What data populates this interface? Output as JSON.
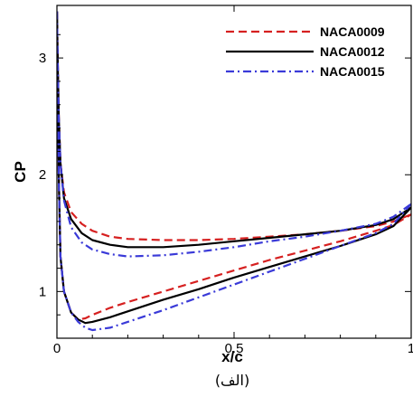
{
  "chart_data": {
    "type": "line",
    "title": "",
    "xlabel": "x/c",
    "ylabel": "CP",
    "caption": "(الف)",
    "xlim": [
      0,
      1
    ],
    "ylim": [
      0.6,
      3.45
    ],
    "x_ticks": [
      {
        "value": 0,
        "label": "0"
      },
      {
        "value": 0.5,
        "label": "0.5"
      },
      {
        "value": 1,
        "label": "1"
      }
    ],
    "y_ticks": [
      {
        "value": 1,
        "label": "1"
      },
      {
        "value": 2,
        "label": "2"
      },
      {
        "value": 3,
        "label": "3"
      }
    ],
    "legend_position": "top-right",
    "grid": false,
    "series": [
      {
        "name": "NACA0009",
        "color": "#d62020",
        "dash": "dashed",
        "upper": [
          [
            0.0,
            3.4
          ],
          [
            0.002,
            3.0
          ],
          [
            0.005,
            2.5
          ],
          [
            0.01,
            2.1
          ],
          [
            0.02,
            1.85
          ],
          [
            0.04,
            1.68
          ],
          [
            0.07,
            1.58
          ],
          [
            0.1,
            1.52
          ],
          [
            0.15,
            1.47
          ],
          [
            0.2,
            1.45
          ],
          [
            0.3,
            1.44
          ],
          [
            0.4,
            1.44
          ],
          [
            0.5,
            1.45
          ],
          [
            0.6,
            1.47
          ],
          [
            0.7,
            1.49
          ],
          [
            0.8,
            1.52
          ],
          [
            0.9,
            1.56
          ],
          [
            0.95,
            1.6
          ],
          [
            1.0,
            1.66
          ]
        ],
        "lower": [
          [
            0.0,
            3.4
          ],
          [
            0.005,
            2.0
          ],
          [
            0.01,
            1.3
          ],
          [
            0.02,
            1.0
          ],
          [
            0.04,
            0.82
          ],
          [
            0.06,
            0.76
          ],
          [
            0.08,
            0.77
          ],
          [
            0.1,
            0.8
          ],
          [
            0.15,
            0.86
          ],
          [
            0.2,
            0.91
          ],
          [
            0.3,
            1.0
          ],
          [
            0.4,
            1.09
          ],
          [
            0.5,
            1.18
          ],
          [
            0.6,
            1.27
          ],
          [
            0.7,
            1.35
          ],
          [
            0.8,
            1.43
          ],
          [
            0.9,
            1.52
          ],
          [
            0.95,
            1.57
          ],
          [
            1.0,
            1.66
          ]
        ]
      },
      {
        "name": "NACA0012",
        "color": "#000000",
        "dash": "solid",
        "upper": [
          [
            0.0,
            3.4
          ],
          [
            0.002,
            3.0
          ],
          [
            0.005,
            2.5
          ],
          [
            0.01,
            2.1
          ],
          [
            0.02,
            1.8
          ],
          [
            0.04,
            1.62
          ],
          [
            0.07,
            1.5
          ],
          [
            0.1,
            1.44
          ],
          [
            0.15,
            1.4
          ],
          [
            0.2,
            1.38
          ],
          [
            0.3,
            1.38
          ],
          [
            0.4,
            1.4
          ],
          [
            0.5,
            1.43
          ],
          [
            0.6,
            1.46
          ],
          [
            0.7,
            1.49
          ],
          [
            0.8,
            1.52
          ],
          [
            0.9,
            1.57
          ],
          [
            0.95,
            1.62
          ],
          [
            1.0,
            1.72
          ]
        ],
        "lower": [
          [
            0.0,
            3.4
          ],
          [
            0.005,
            2.0
          ],
          [
            0.01,
            1.3
          ],
          [
            0.02,
            1.0
          ],
          [
            0.04,
            0.82
          ],
          [
            0.06,
            0.76
          ],
          [
            0.08,
            0.73
          ],
          [
            0.1,
            0.74
          ],
          [
            0.15,
            0.78
          ],
          [
            0.2,
            0.83
          ],
          [
            0.3,
            0.93
          ],
          [
            0.4,
            1.02
          ],
          [
            0.5,
            1.12
          ],
          [
            0.6,
            1.21
          ],
          [
            0.7,
            1.3
          ],
          [
            0.8,
            1.39
          ],
          [
            0.9,
            1.49
          ],
          [
            0.95,
            1.56
          ],
          [
            1.0,
            1.72
          ]
        ]
      },
      {
        "name": "NACA0015",
        "color": "#3a3ad8",
        "dash": "dashdot",
        "upper": [
          [
            0.0,
            3.4
          ],
          [
            0.002,
            3.0
          ],
          [
            0.005,
            2.5
          ],
          [
            0.01,
            2.1
          ],
          [
            0.02,
            1.78
          ],
          [
            0.04,
            1.55
          ],
          [
            0.07,
            1.42
          ],
          [
            0.1,
            1.36
          ],
          [
            0.15,
            1.32
          ],
          [
            0.2,
            1.3
          ],
          [
            0.3,
            1.31
          ],
          [
            0.4,
            1.34
          ],
          [
            0.5,
            1.38
          ],
          [
            0.6,
            1.43
          ],
          [
            0.7,
            1.47
          ],
          [
            0.8,
            1.52
          ],
          [
            0.9,
            1.58
          ],
          [
            0.95,
            1.64
          ],
          [
            1.0,
            1.75
          ]
        ],
        "lower": [
          [
            0.0,
            3.4
          ],
          [
            0.005,
            2.0
          ],
          [
            0.01,
            1.3
          ],
          [
            0.02,
            1.0
          ],
          [
            0.04,
            0.82
          ],
          [
            0.06,
            0.74
          ],
          [
            0.08,
            0.69
          ],
          [
            0.1,
            0.67
          ],
          [
            0.15,
            0.69
          ],
          [
            0.2,
            0.74
          ],
          [
            0.3,
            0.84
          ],
          [
            0.4,
            0.95
          ],
          [
            0.5,
            1.06
          ],
          [
            0.6,
            1.17
          ],
          [
            0.7,
            1.28
          ],
          [
            0.8,
            1.39
          ],
          [
            0.9,
            1.5
          ],
          [
            0.95,
            1.58
          ],
          [
            1.0,
            1.75
          ]
        ]
      }
    ]
  }
}
